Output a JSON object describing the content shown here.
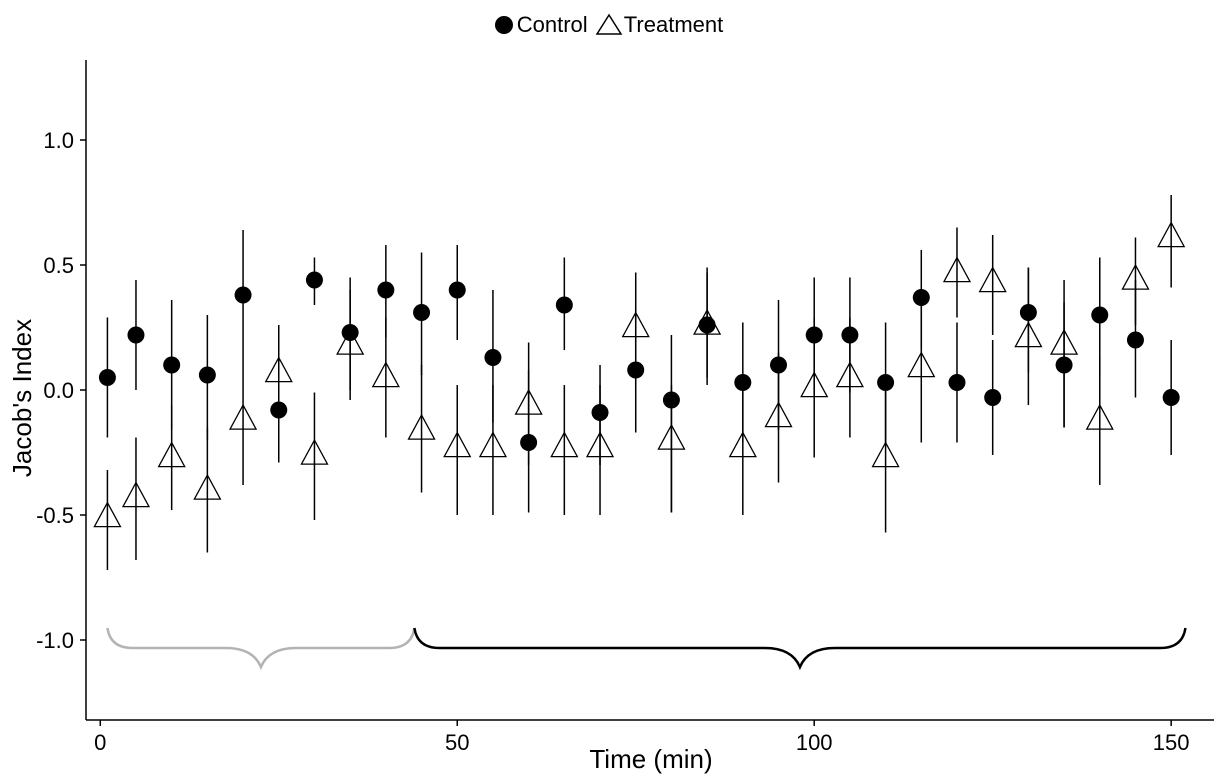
{
  "chart_data": {
    "type": "scatter",
    "xlabel": "Time (min)",
    "ylabel": "Jacob's Index",
    "xlim": [
      -2,
      156
    ],
    "ylim": [
      -1.32,
      1.32
    ],
    "xticks": [
      0,
      50,
      100,
      150
    ],
    "xtick_labels": [
      "0",
      "50",
      "100",
      "150"
    ],
    "yticks": [
      -1.0,
      -0.5,
      0.0,
      0.5,
      1.0
    ],
    "ytick_labels": [
      "-1.0",
      "-0.5",
      "0.0",
      "0.5",
      "1.0"
    ],
    "grid": false,
    "legend_position": "top",
    "series": [
      {
        "name": "Control",
        "marker": "filled-circle",
        "color": "#000000",
        "points": [
          {
            "x": 1,
            "y": 0.05,
            "lo": -0.19,
            "hi": 0.29
          },
          {
            "x": 5,
            "y": 0.22,
            "lo": 0.0,
            "hi": 0.44
          },
          {
            "x": 10,
            "y": 0.1,
            "lo": -0.16,
            "hi": 0.36
          },
          {
            "x": 15,
            "y": 0.06,
            "lo": -0.2,
            "hi": 0.3
          },
          {
            "x": 20,
            "y": 0.38,
            "lo": 0.12,
            "hi": 0.64
          },
          {
            "x": 25,
            "y": -0.08,
            "lo": -0.29,
            "hi": 0.11
          },
          {
            "x": 30,
            "y": 0.44,
            "lo": 0.34,
            "hi": 0.53
          },
          {
            "x": 35,
            "y": 0.23,
            "lo": 0.0,
            "hi": 0.45
          },
          {
            "x": 40,
            "y": 0.4,
            "lo": 0.21,
            "hi": 0.58
          },
          {
            "x": 45,
            "y": 0.31,
            "lo": 0.06,
            "hi": 0.55
          },
          {
            "x": 50,
            "y": 0.4,
            "lo": 0.2,
            "hi": 0.58
          },
          {
            "x": 55,
            "y": 0.13,
            "lo": -0.13,
            "hi": 0.4
          },
          {
            "x": 60,
            "y": -0.21,
            "lo": -0.49,
            "hi": 0.08
          },
          {
            "x": 65,
            "y": 0.34,
            "lo": 0.16,
            "hi": 0.53
          },
          {
            "x": 70,
            "y": -0.09,
            "lo": -0.3,
            "hi": 0.1
          },
          {
            "x": 75,
            "y": 0.08,
            "lo": -0.17,
            "hi": 0.33
          },
          {
            "x": 80,
            "y": -0.04,
            "lo": -0.49,
            "hi": 0.22
          },
          {
            "x": 85,
            "y": 0.26,
            "lo": 0.02,
            "hi": 0.49
          },
          {
            "x": 90,
            "y": 0.03,
            "lo": -0.21,
            "hi": 0.27
          },
          {
            "x": 95,
            "y": 0.1,
            "lo": -0.16,
            "hi": 0.36
          },
          {
            "x": 100,
            "y": 0.22,
            "lo": -0.02,
            "hi": 0.45
          },
          {
            "x": 105,
            "y": 0.22,
            "lo": -0.01,
            "hi": 0.45
          },
          {
            "x": 110,
            "y": 0.03,
            "lo": -0.22,
            "hi": 0.27
          },
          {
            "x": 115,
            "y": 0.37,
            "lo": 0.17,
            "hi": 0.56
          },
          {
            "x": 120,
            "y": 0.03,
            "lo": -0.21,
            "hi": 0.27
          },
          {
            "x": 125,
            "y": -0.03,
            "lo": -0.26,
            "hi": 0.2
          },
          {
            "x": 130,
            "y": 0.31,
            "lo": 0.07,
            "hi": 0.49
          },
          {
            "x": 135,
            "y": 0.1,
            "lo": -0.15,
            "hi": 0.35
          },
          {
            "x": 140,
            "y": 0.3,
            "lo": 0.06,
            "hi": 0.53
          },
          {
            "x": 145,
            "y": 0.2,
            "lo": -0.03,
            "hi": 0.44
          },
          {
            "x": 150,
            "y": -0.03,
            "lo": -0.26,
            "hi": 0.2
          }
        ]
      },
      {
        "name": "Treatment",
        "marker": "open-triangle",
        "color": "#000000",
        "points": [
          {
            "x": 1,
            "y": -0.51,
            "lo": -0.72,
            "hi": -0.32
          },
          {
            "x": 5,
            "y": -0.43,
            "lo": -0.68,
            "hi": -0.19
          },
          {
            "x": 10,
            "y": -0.27,
            "lo": -0.48,
            "hi": -0.06
          },
          {
            "x": 15,
            "y": -0.4,
            "lo": -0.65,
            "hi": -0.15
          },
          {
            "x": 20,
            "y": -0.12,
            "lo": -0.38,
            "hi": 0.12
          },
          {
            "x": 25,
            "y": 0.07,
            "lo": -0.11,
            "hi": 0.26
          },
          {
            "x": 30,
            "y": -0.26,
            "lo": -0.52,
            "hi": -0.01
          },
          {
            "x": 35,
            "y": 0.18,
            "lo": -0.04,
            "hi": 0.4
          },
          {
            "x": 40,
            "y": 0.05,
            "lo": -0.19,
            "hi": 0.29
          },
          {
            "x": 45,
            "y": -0.16,
            "lo": -0.41,
            "hi": 0.1
          },
          {
            "x": 50,
            "y": -0.23,
            "lo": -0.5,
            "hi": 0.02
          },
          {
            "x": 55,
            "y": -0.23,
            "lo": -0.5,
            "hi": 0.02
          },
          {
            "x": 60,
            "y": -0.06,
            "lo": -0.3,
            "hi": 0.19
          },
          {
            "x": 65,
            "y": -0.23,
            "lo": -0.5,
            "hi": 0.02
          },
          {
            "x": 70,
            "y": -0.23,
            "lo": -0.5,
            "hi": 0.02
          },
          {
            "x": 75,
            "y": 0.25,
            "lo": 0.02,
            "hi": 0.47
          },
          {
            "x": 80,
            "y": -0.2,
            "lo": -0.49,
            "hi": 0.02
          },
          {
            "x": 85,
            "y": 0.26,
            "lo": 0.05,
            "hi": 0.47
          },
          {
            "x": 90,
            "y": -0.23,
            "lo": -0.5,
            "hi": 0.02
          },
          {
            "x": 95,
            "y": -0.11,
            "lo": -0.37,
            "hi": 0.15
          },
          {
            "x": 100,
            "y": 0.01,
            "lo": -0.27,
            "hi": 0.29
          },
          {
            "x": 105,
            "y": 0.05,
            "lo": -0.19,
            "hi": 0.29
          },
          {
            "x": 110,
            "y": -0.27,
            "lo": -0.57,
            "hi": 0.02
          },
          {
            "x": 115,
            "y": 0.09,
            "lo": -0.21,
            "hi": 0.38
          },
          {
            "x": 120,
            "y": 0.47,
            "lo": 0.29,
            "hi": 0.65
          },
          {
            "x": 125,
            "y": 0.43,
            "lo": 0.22,
            "hi": 0.62
          },
          {
            "x": 130,
            "y": 0.21,
            "lo": -0.06,
            "hi": 0.49
          },
          {
            "x": 135,
            "y": 0.18,
            "lo": -0.15,
            "hi": 0.44
          },
          {
            "x": 140,
            "y": -0.12,
            "lo": -0.38,
            "hi": 0.13
          },
          {
            "x": 145,
            "y": 0.44,
            "lo": 0.26,
            "hi": 0.61
          },
          {
            "x": 150,
            "y": 0.61,
            "lo": 0.41,
            "hi": 0.78
          }
        ]
      }
    ],
    "annotations": [
      {
        "type": "curly-brace",
        "x_start": 1,
        "x_end": 44,
        "y": -1.0,
        "color": "#b3b3b3"
      },
      {
        "type": "curly-brace",
        "x_start": 44,
        "x_end": 152,
        "y": -1.0,
        "color": "#000000"
      }
    ]
  }
}
